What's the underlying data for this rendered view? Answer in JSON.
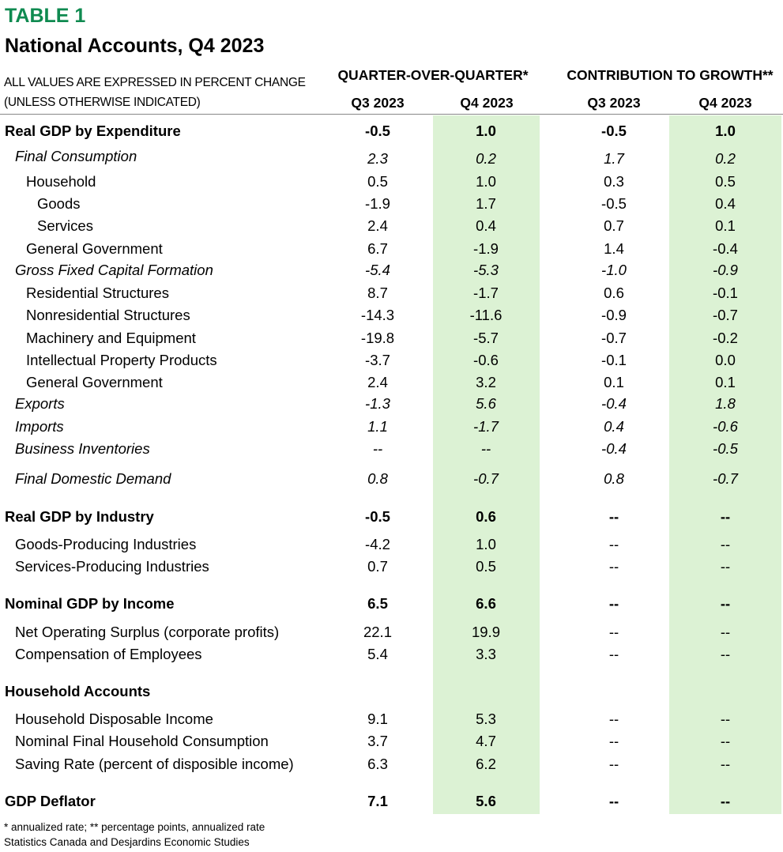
{
  "table_label": "TABLE 1",
  "title": "National Accounts, Q4 2023",
  "units_line1": "ALL VALUES ARE EXPRESSED IN PERCENT CHANGE",
  "units_line2": "(UNLESS OTHERWISE INDICATED)",
  "group_headers": [
    "QUARTER-OVER-QUARTER*",
    "CONTRIBUTION TO GROWTH**"
  ],
  "column_headers": [
    "Q3 2023",
    "Q4 2023",
    "Q3 2023",
    "Q4 2023"
  ],
  "highlight_color": "#dcf2d4",
  "accent_color": "#0f8a50",
  "rows": [
    {
      "label": "Real GDP by Expenditure",
      "style": "bold",
      "indent": 0,
      "values": [
        "-0.5",
        "1.0",
        "-0.5",
        "1.0"
      ]
    },
    {
      "label": "Final Consumption",
      "style": "italic",
      "indent": 1,
      "values": [
        "2.3",
        "0.2",
        "1.7",
        "0.2"
      ]
    },
    {
      "label": "Household",
      "style": "normal",
      "indent": 2,
      "values": [
        "0.5",
        "1.0",
        "0.3",
        "0.5"
      ]
    },
    {
      "label": "Goods",
      "style": "normal",
      "indent": 3,
      "values": [
        "-1.9",
        "1.7",
        "-0.5",
        "0.4"
      ]
    },
    {
      "label": "Services",
      "style": "normal",
      "indent": 3,
      "values": [
        "2.4",
        "0.4",
        "0.7",
        "0.1"
      ]
    },
    {
      "label": "General Government",
      "style": "normal",
      "indent": 2,
      "values": [
        "6.7",
        "-1.9",
        "1.4",
        "-0.4"
      ]
    },
    {
      "label": "Gross Fixed Capital Formation",
      "style": "italic",
      "indent": 1,
      "values": [
        "-5.4",
        "-5.3",
        "-1.0",
        "-0.9"
      ]
    },
    {
      "label": "Residential Structures",
      "style": "normal",
      "indent": 2,
      "values": [
        "8.7",
        "-1.7",
        "0.6",
        "-0.1"
      ]
    },
    {
      "label": "Nonresidential Structures",
      "style": "normal",
      "indent": 2,
      "values": [
        "-14.3",
        "-11.6",
        "-0.9",
        "-0.7"
      ]
    },
    {
      "label": "Machinery and Equipment",
      "style": "normal",
      "indent": 2,
      "values": [
        "-19.8",
        "-5.7",
        "-0.7",
        "-0.2"
      ]
    },
    {
      "label": "Intellectual Property Products",
      "style": "normal",
      "indent": 2,
      "values": [
        "-3.7",
        "-0.6",
        "-0.1",
        "0.0"
      ]
    },
    {
      "label": "General Government",
      "style": "normal",
      "indent": 2,
      "values": [
        "2.4",
        "3.2",
        "0.1",
        "0.1"
      ]
    },
    {
      "label": "Exports",
      "style": "italic",
      "indent": 1,
      "values": [
        "-1.3",
        "5.6",
        "-0.4",
        "1.8"
      ]
    },
    {
      "label": "Imports",
      "style": "italic",
      "indent": 1,
      "values": [
        "1.1",
        "-1.7",
        "0.4",
        "-0.6"
      ]
    },
    {
      "label": "Business Inventories",
      "style": "italic",
      "indent": 1,
      "values": [
        "--",
        "--",
        "-0.4",
        "-0.5"
      ]
    },
    {
      "label": "Final Domestic Demand",
      "style": "italic",
      "indent": 1,
      "values": [
        "0.8",
        "-0.7",
        "0.8",
        "-0.7"
      ]
    },
    {
      "label": "Real GDP by Industry",
      "style": "bold",
      "indent": 0,
      "values": [
        "-0.5",
        "0.6",
        "--",
        "--"
      ]
    },
    {
      "label": "Goods-Producing Industries",
      "style": "normal",
      "indent": 1,
      "values": [
        "-4.2",
        "1.0",
        "--",
        "--"
      ]
    },
    {
      "label": "Services-Producing Industries",
      "style": "normal",
      "indent": 1,
      "values": [
        "0.7",
        "0.5",
        "--",
        "--"
      ]
    },
    {
      "label": "Nominal GDP by Income",
      "style": "bold",
      "indent": 0,
      "values": [
        "6.5",
        "6.6",
        "--",
        "--"
      ]
    },
    {
      "label": "Net Operating Surplus (corporate profits)",
      "style": "normal",
      "indent": 1,
      "values": [
        "22.1",
        "19.9",
        "--",
        "--"
      ]
    },
    {
      "label": "Compensation of Employees",
      "style": "normal",
      "indent": 1,
      "values": [
        "5.4",
        "3.3",
        "--",
        "--"
      ]
    },
    {
      "label": "Household Accounts",
      "style": "bold",
      "indent": 0,
      "values": [
        "",
        "",
        "",
        ""
      ]
    },
    {
      "label": "Household Disposable Income",
      "style": "normal",
      "indent": 1,
      "values": [
        "9.1",
        "5.3",
        "--",
        "--"
      ]
    },
    {
      "label": "Nominal Final Household Consumption",
      "style": "normal",
      "indent": 1,
      "values": [
        "3.7",
        "4.7",
        "--",
        "--"
      ]
    },
    {
      "label": "Saving Rate (percent of disposible income)",
      "style": "normal",
      "indent": 1,
      "values": [
        "6.3",
        "6.2",
        "--",
        "--"
      ]
    },
    {
      "label": "GDP Deflator",
      "style": "bold",
      "indent": 0,
      "values": [
        "7.1",
        "5.6",
        "--",
        "--"
      ]
    }
  ],
  "footnote": "* annualized rate; ** percentage points, annualized rate",
  "source": "Statistics Canada and Desjardins Economic Studies"
}
